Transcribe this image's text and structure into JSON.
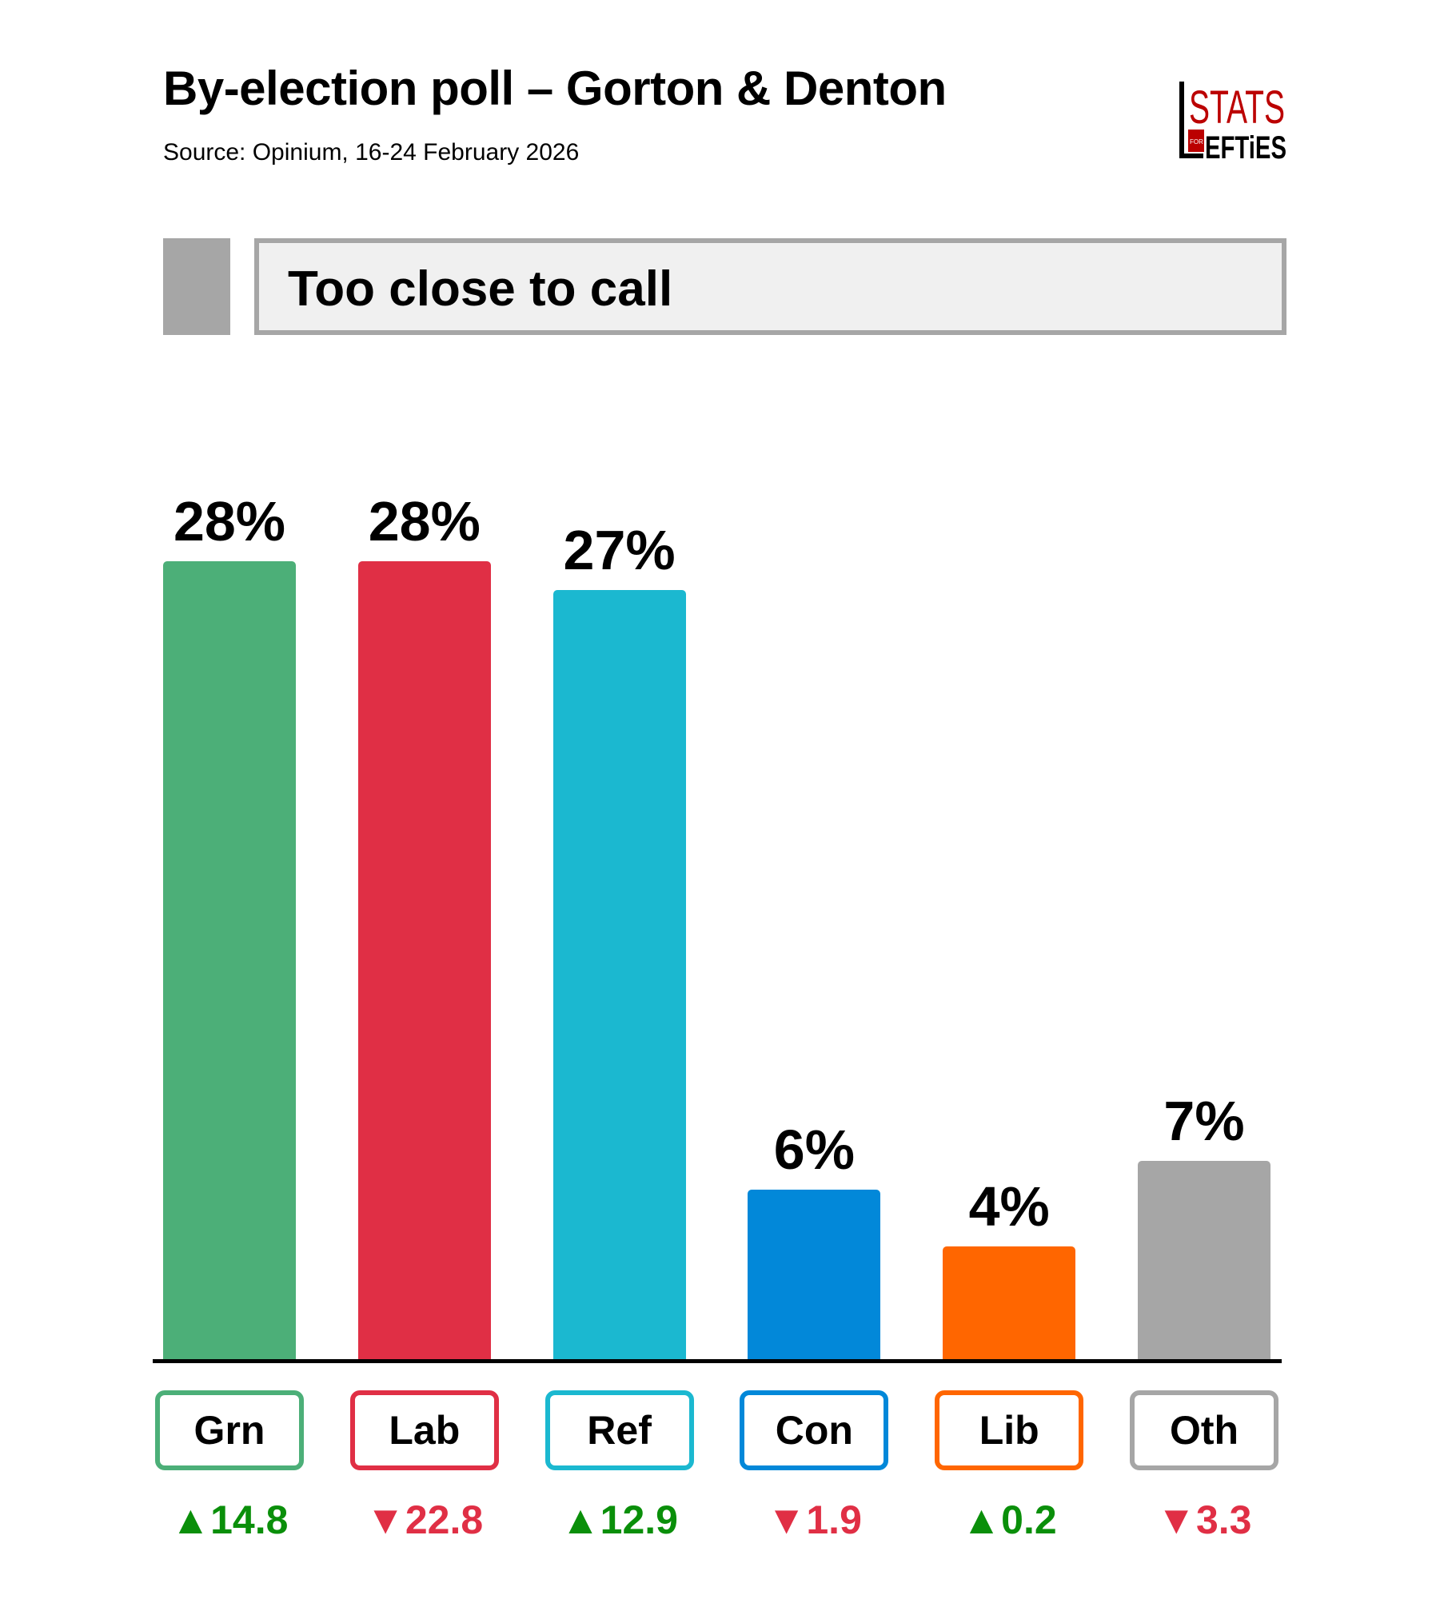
{
  "header": {
    "title": "By-election poll – Gorton & Denton",
    "source": "Source: Opinium, 16-24 February 2026",
    "logo_text": "STATS FOR LEFTIES"
  },
  "banner": {
    "text": "Too close to call",
    "color": "#a6a6a6"
  },
  "chart_data": {
    "type": "bar",
    "title": "By-election poll – Gorton & Denton",
    "categories": [
      "Grn",
      "Lab",
      "Ref",
      "Con",
      "Lib",
      "Oth"
    ],
    "values": [
      28,
      28,
      27,
      6,
      4,
      7
    ],
    "labels": [
      "28%",
      "28%",
      "27%",
      "6%",
      "4%",
      "7%"
    ],
    "changes": [
      "▲14.8",
      "▼22.8",
      "▲12.9",
      "▼1.9",
      "▲0.2",
      "▼3.3"
    ],
    "change_values": [
      14.8,
      -22.8,
      12.9,
      -1.9,
      0.2,
      -3.3
    ],
    "colors": [
      "#4caf78",
      "#e02f45",
      "#1bb8d0",
      "#0288d9",
      "#ff6600",
      "#a6a6a6"
    ],
    "up_color": "#0a8f0a",
    "down_color": "#e02f45",
    "ylim": [
      0,
      28
    ],
    "xlabel": "",
    "ylabel": "",
    "grid": false
  }
}
